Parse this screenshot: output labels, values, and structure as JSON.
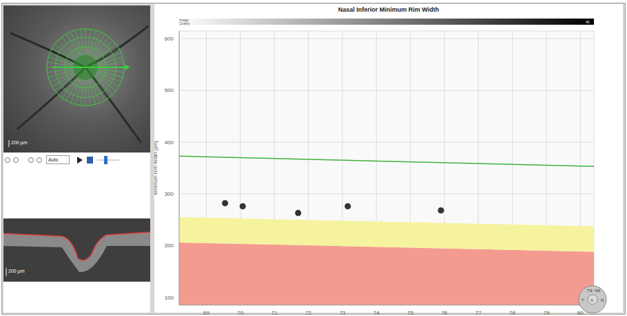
{
  "chart_data": {
    "type": "scatter",
    "title": "Nasal Inferior Minimum Rim Width",
    "y_label": "Minimum Rim Width [µm]",
    "xlim": [
      68.2,
      80.4
    ],
    "xticks": [
      69,
      70,
      71,
      72,
      73,
      74,
      75,
      76,
      77,
      78,
      79,
      80
    ],
    "ylim": [
      85,
      615
    ],
    "yticks": [
      100,
      200,
      300,
      400,
      500,
      600
    ],
    "grid": true,
    "series": [
      {
        "type": "area",
        "color": "#f39b90",
        "x": [
          68.2,
          80.4
        ],
        "values": [
          [
            85,
            206
          ],
          [
            85,
            188
          ]
        ]
      },
      {
        "type": "area",
        "color": "#f6f39e",
        "x": [
          68.2,
          80.4
        ],
        "values": [
          [
            206,
            255
          ],
          [
            188,
            237
          ]
        ]
      },
      {
        "type": "line",
        "color": "#3db03d",
        "x": [
          68.2,
          80.4
        ],
        "values": [
          373,
          353
        ]
      },
      {
        "type": "scatter",
        "color": "#333333",
        "marker": "circle",
        "x": [
          69.55,
          70.07,
          71.7,
          73.16,
          75.9
        ],
        "values": [
          282,
          276,
          263,
          276,
          268
        ]
      }
    ]
  },
  "screen": {
    "quality_label": "Image Quality",
    "quality_max": "40",
    "fundus_scale": "200 µm",
    "zoom": "Auto",
    "bscan_scale": "200 µm",
    "sectors": [
      "TS",
      "NS",
      "T",
      "G",
      "N"
    ]
  }
}
